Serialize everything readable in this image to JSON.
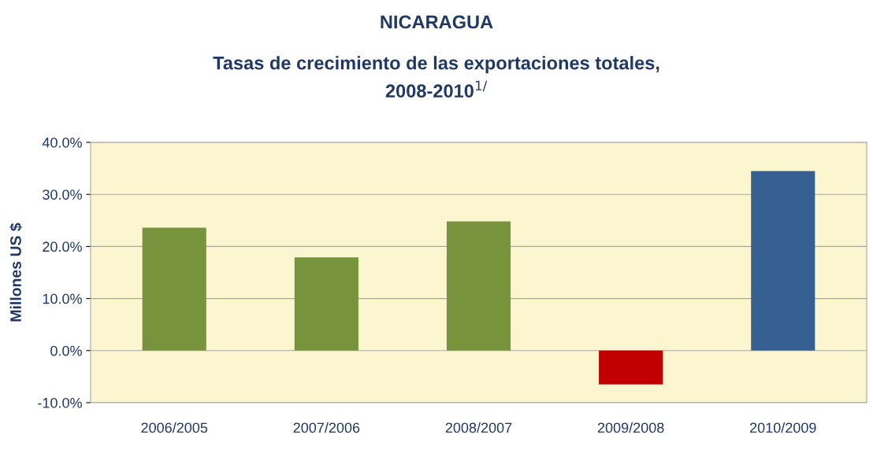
{
  "chart_data": {
    "type": "bar",
    "title": "NICARAGUA",
    "subtitle": "Tasas de crecimiento de las exportaciones totales,\n2008-2010$^{1/}$",
    "ylabel": "Millones US $",
    "categories": [
      "2006/2005",
      "2007/2006",
      "2008/2007",
      "2009/2008",
      "2010/2009"
    ],
    "values": [
      23.6,
      17.9,
      24.8,
      -6.5,
      34.5
    ],
    "colors": [
      "#77933c",
      "#77933c",
      "#77933c",
      "#c00000",
      "#376092"
    ],
    "ylim": [
      -10,
      40
    ],
    "yticks": [
      {
        "value": -10,
        "label": "-10.0%"
      },
      {
        "value": 0,
        "label": "0.0%"
      },
      {
        "value": 10,
        "label": "10.0%"
      },
      {
        "value": 20,
        "label": "20.0%"
      },
      {
        "value": 30,
        "label": "30.0%"
      },
      {
        "value": 40,
        "label": "40.0%"
      }
    ],
    "grid": "y",
    "legend": false
  }
}
